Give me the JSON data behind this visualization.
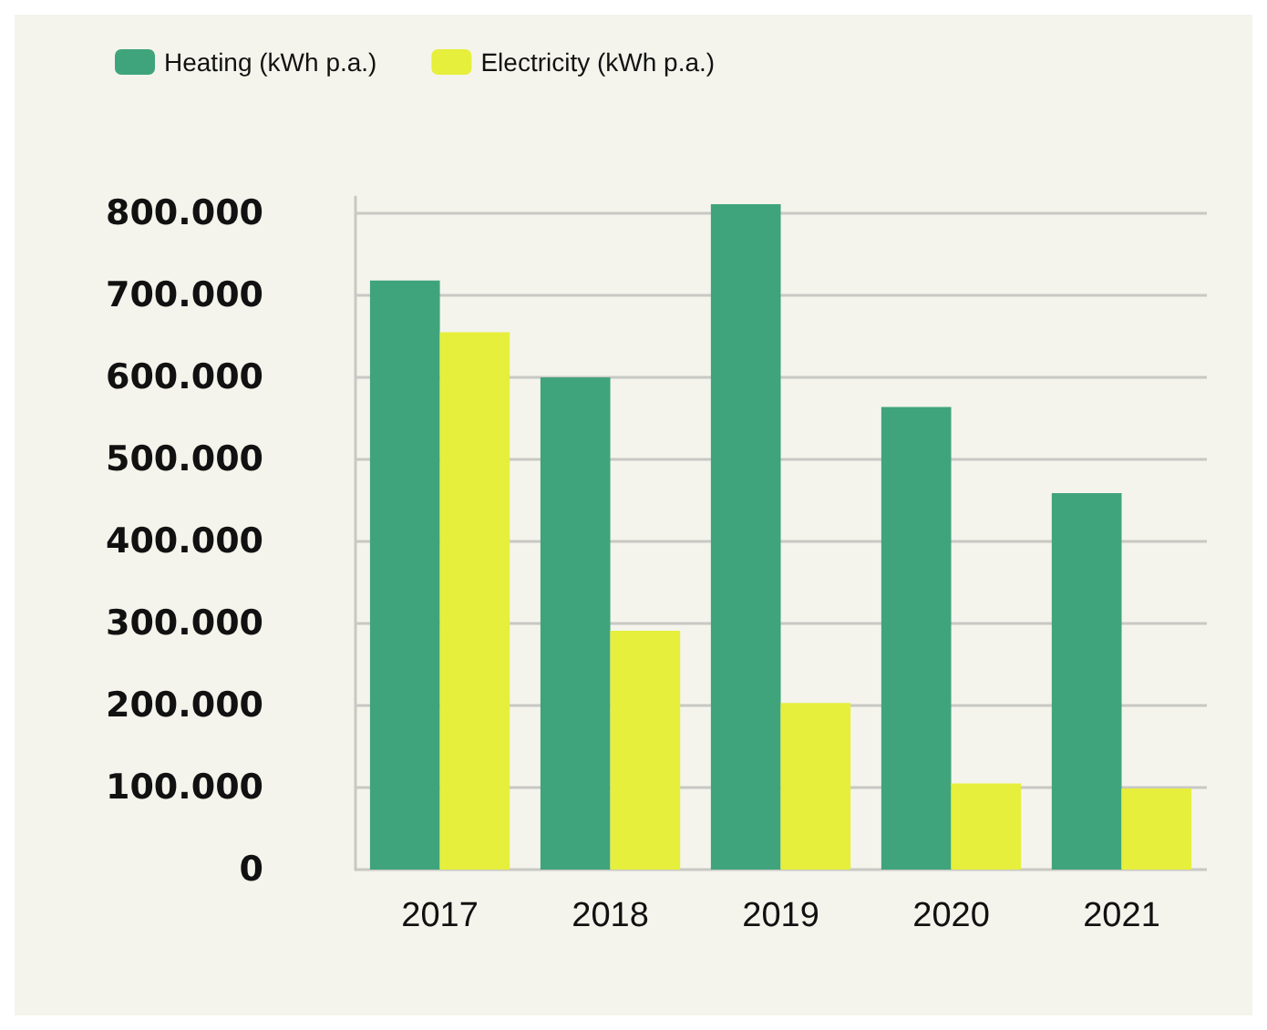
{
  "chart_data": {
    "type": "bar",
    "categories": [
      "2017",
      "2018",
      "2019",
      "2020",
      "2021"
    ],
    "series": [
      {
        "name": "Heating (kWh p.a.)",
        "color": "#3fa47c",
        "values": [
          718000,
          600000,
          811000,
          564000,
          459000
        ]
      },
      {
        "name": "Electricity (kWh p.a.)",
        "color": "#e6ef3c",
        "values": [
          655000,
          291000,
          203000,
          105000,
          99000
        ]
      }
    ],
    "ylim": [
      0,
      820000
    ],
    "yticks": [
      {
        "value": 0,
        "label": "0"
      },
      {
        "value": 100000,
        "label": "100.000"
      },
      {
        "value": 200000,
        "label": "200.000"
      },
      {
        "value": 300000,
        "label": "300.000"
      },
      {
        "value": 400000,
        "label": "400.000"
      },
      {
        "value": 500000,
        "label": "500.000"
      },
      {
        "value": 600000,
        "label": "600.000"
      },
      {
        "value": 700000,
        "label": "700.000"
      },
      {
        "value": 800000,
        "label": "800.000"
      }
    ],
    "grid": "y",
    "legend": "top left"
  }
}
